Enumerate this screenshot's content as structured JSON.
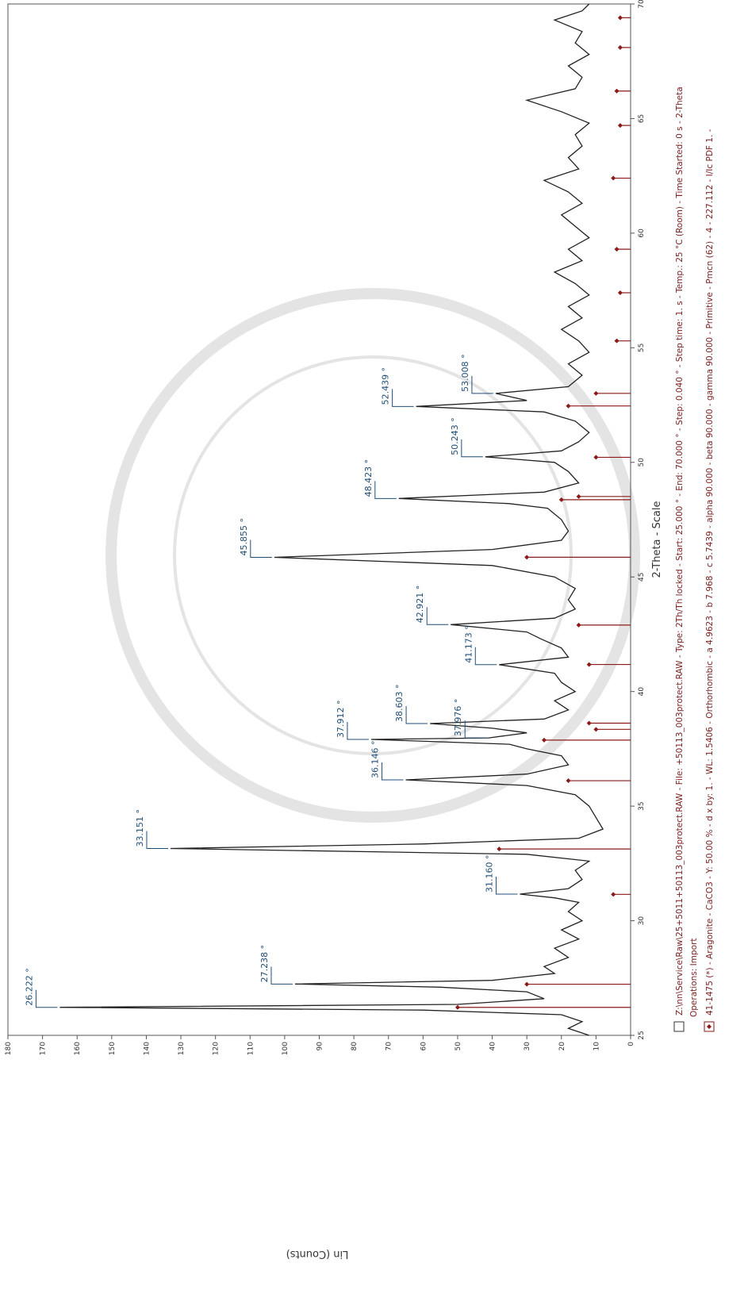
{
  "chart_data": {
    "type": "line",
    "x_label": "2-Theta - Scale",
    "y_label": "Lin (Counts)",
    "xlim": [
      25,
      70
    ],
    "xticks": [
      25,
      30,
      35,
      40,
      45,
      50,
      55,
      60,
      65,
      70
    ],
    "ylim": [
      0,
      180
    ],
    "yticks": [
      0,
      10,
      20,
      30,
      40,
      50,
      60,
      70,
      80,
      90,
      100,
      110,
      120,
      130,
      140,
      150,
      160,
      170,
      180
    ],
    "x": [
      25.0,
      25.3,
      25.6,
      25.9,
      26.1,
      26.222,
      26.35,
      26.6,
      26.9,
      27.1,
      27.238,
      27.4,
      27.7,
      28.0,
      28.4,
      28.8,
      29.2,
      29.6,
      30.0,
      30.4,
      30.8,
      31.0,
      31.16,
      31.4,
      31.8,
      32.2,
      32.6,
      32.9,
      33.151,
      33.35,
      33.6,
      34.0,
      34.5,
      35.0,
      35.5,
      35.9,
      36.146,
      36.4,
      36.8,
      37.2,
      37.5,
      37.7,
      37.912,
      37.976,
      38.2,
      38.4,
      38.603,
      38.8,
      39.2,
      39.6,
      40.0,
      40.4,
      40.8,
      41.173,
      41.5,
      41.9,
      42.3,
      42.6,
      42.921,
      43.2,
      43.6,
      44.0,
      44.5,
      45.0,
      45.5,
      45.855,
      46.2,
      46.6,
      47.0,
      47.5,
      48.0,
      48.2,
      48.423,
      48.7,
      49.1,
      49.6,
      50.0,
      50.243,
      50.5,
      50.9,
      51.3,
      51.8,
      52.2,
      52.439,
      52.7,
      53.008,
      53.3,
      53.8,
      54.3,
      54.8,
      55.3,
      55.8,
      56.3,
      56.8,
      57.3,
      57.8,
      58.3,
      58.8,
      59.3,
      59.8,
      60.3,
      60.8,
      61.3,
      61.8,
      62.3,
      62.8,
      63.3,
      63.8,
      64.3,
      64.8,
      65.3,
      65.8,
      66.3,
      66.8,
      67.3,
      67.8,
      68.3,
      68.8,
      69.3,
      69.7,
      70.0
    ],
    "series": [
      {
        "color": "#222222",
        "values": [
          12,
          18,
          14,
          20,
          60,
          165,
          50,
          25,
          30,
          55,
          97,
          40,
          22,
          25,
          18,
          22,
          15,
          20,
          14,
          18,
          15,
          22,
          32,
          18,
          14,
          16,
          12,
          30,
          133,
          60,
          15,
          8,
          10,
          12,
          16,
          30,
          65,
          30,
          18,
          20,
          30,
          35,
          75,
          41,
          30,
          40,
          58,
          25,
          18,
          22,
          16,
          20,
          22,
          38,
          18,
          20,
          26,
          30,
          52,
          22,
          16,
          18,
          16,
          22,
          40,
          103,
          40,
          20,
          18,
          20,
          24,
          35,
          67,
          25,
          15,
          18,
          22,
          42,
          20,
          15,
          12,
          16,
          25,
          62,
          30,
          39,
          18,
          14,
          18,
          12,
          15,
          20,
          14,
          18,
          12,
          16,
          22,
          14,
          18,
          12,
          16,
          20,
          14,
          18,
          25,
          15,
          18,
          14,
          16,
          12,
          20,
          30,
          16,
          14,
          18,
          12,
          16,
          14,
          22,
          14,
          12
        ]
      }
    ],
    "reference": {
      "color": "#8b1a1a",
      "x": [
        26.22,
        27.23,
        31.15,
        33.13,
        36.11,
        37.88,
        38.35,
        38.62,
        41.18,
        42.9,
        45.86,
        48.37,
        48.51,
        50.22,
        52.46,
        53.01,
        55.3,
        57.4,
        59.3,
        62.4,
        64.7,
        66.2,
        68.1,
        69.4
      ],
      "values": [
        50,
        30,
        5,
        38,
        18,
        25,
        10,
        12,
        12,
        15,
        30,
        20,
        15,
        10,
        18,
        10,
        4,
        3,
        4,
        5,
        3,
        4,
        3,
        3
      ]
    },
    "annotations": [
      {
        "x": 26.222,
        "y": 165,
        "label": "26.222 °"
      },
      {
        "x": 27.238,
        "y": 97,
        "label": "27.238 °"
      },
      {
        "x": 31.16,
        "y": 32,
        "label": "31.160 °"
      },
      {
        "x": 33.151,
        "y": 133,
        "label": "33.151 °"
      },
      {
        "x": 36.146,
        "y": 65,
        "label": "36.146 °"
      },
      {
        "x": 37.912,
        "y": 75,
        "label": "37.912 °"
      },
      {
        "x": 37.976,
        "y": 41,
        "label": "37.976 °"
      },
      {
        "x": 38.603,
        "y": 58,
        "label": "38.603 °"
      },
      {
        "x": 41.173,
        "y": 38,
        "label": "41.173 °"
      },
      {
        "x": 42.921,
        "y": 52,
        "label": "42.921 °"
      },
      {
        "x": 45.855,
        "y": 103,
        "label": "45.855 °"
      },
      {
        "x": 48.423,
        "y": 67,
        "label": "48.423 °"
      },
      {
        "x": 50.243,
        "y": 42,
        "label": "50.243 °"
      },
      {
        "x": 52.439,
        "y": 62,
        "label": "52.439 °"
      },
      {
        "x": 53.008,
        "y": 39,
        "label": "53.008 °"
      }
    ],
    "notes": [
      "Z:\\nn\\Service\\Raw\\25+5011+50113_003protect.RAW - File: +50113_003protect.RAW - Type: 2Th/Th locked - Start: 25.000 ° - End: 70.000 ° - Step: 0.040 ° - Step time: 1. s - Temp.: 25 °C (Room) - Time Started: 0 s - 2-Theta",
      "Operations: Import",
      "41-1475 (*) - Aragonite - CaCO3 - Y: 50.00 % - d x by: 1. - WL: 1.5406 - Orthorhombic - a 4.9623 - b 7.968 - c 5.7439 - alpha 90.000 - beta 90.000 - gamma 90.000 - Primitive - Pmcn (62) - 4 - 227.112 - I/Ic PDF 1. -"
    ]
  }
}
